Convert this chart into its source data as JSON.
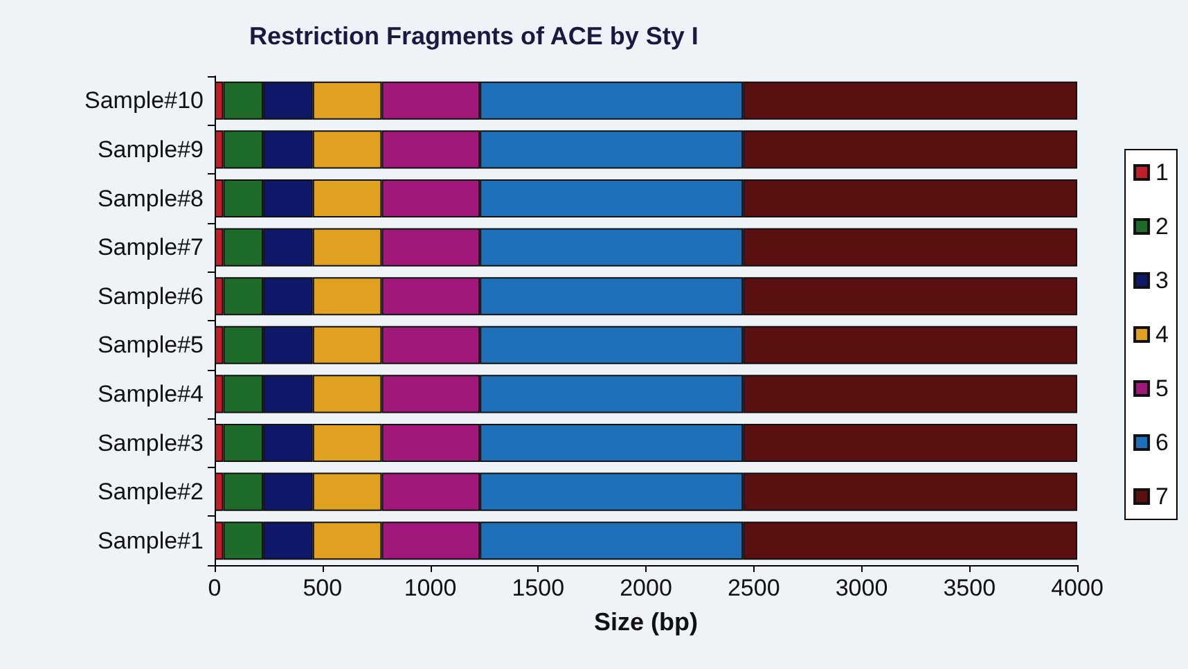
{
  "chart_data": {
    "type": "bar",
    "title": "Restriction Fragments of ACE by Sty I",
    "xlabel": "Size (bp)",
    "orientation": "horizontal",
    "stacked": true,
    "categories": [
      "Sample#10",
      "Sample#9",
      "Sample#8",
      "Sample#7",
      "Sample#6",
      "Sample#5",
      "Sample#4",
      "Sample#3",
      "Sample#2",
      "Sample#1"
    ],
    "series": [
      {
        "name": "1",
        "color": "#c0202a",
        "values": [
          40,
          40,
          40,
          40,
          40,
          40,
          40,
          40,
          40,
          40
        ]
      },
      {
        "name": "2",
        "color": "#1f6b2a",
        "values": [
          185,
          185,
          185,
          185,
          185,
          185,
          185,
          185,
          185,
          185
        ]
      },
      {
        "name": "3",
        "color": "#10186a",
        "values": [
          230,
          230,
          230,
          230,
          230,
          230,
          230,
          230,
          230,
          230
        ]
      },
      {
        "name": "4",
        "color": "#e0a020",
        "values": [
          320,
          320,
          320,
          320,
          320,
          320,
          320,
          320,
          320,
          320
        ]
      },
      {
        "name": "5",
        "color": "#a0187a",
        "values": [
          455,
          455,
          455,
          455,
          455,
          455,
          455,
          455,
          455,
          455
        ]
      },
      {
        "name": "6",
        "color": "#1e70b8",
        "values": [
          1220,
          1220,
          1220,
          1220,
          1220,
          1220,
          1220,
          1220,
          1220,
          1220
        ]
      },
      {
        "name": "7",
        "color": "#5a1010",
        "values": [
          1550,
          1550,
          1550,
          1550,
          1550,
          1550,
          1550,
          1550,
          1550,
          1550
        ]
      }
    ],
    "xlim": [
      0,
      4000
    ],
    "xticks": [
      0,
      500,
      1000,
      1500,
      2000,
      2500,
      3000,
      3500,
      4000
    ],
    "grid": false,
    "legend": "right"
  }
}
